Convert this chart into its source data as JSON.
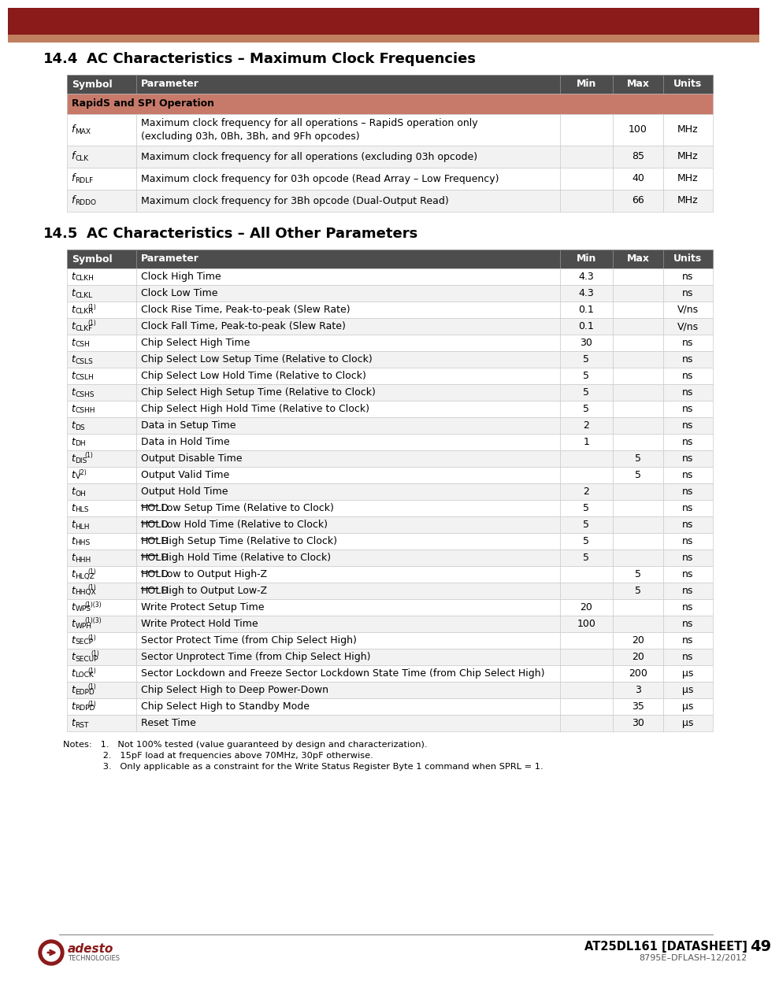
{
  "title1_num": "14.4",
  "title1_text": "AC Characteristics – Maximum Clock Frequencies",
  "title2_num": "14.5",
  "title2_text": "AC Characteristics – All Other Parameters",
  "header_bg": "#4d4d4d",
  "subheader_bg": "#c87a6a",
  "top_bar_dark": "#8b1a1a",
  "top_bar_light": "#c08070",
  "table1_headers": [
    "Symbol",
    "Parameter",
    "Min",
    "Max",
    "Units"
  ],
  "table1_subheader": "RapidS and SPI Operation",
  "table1_rows": [
    [
      "f",
      "MAX",
      "",
      "Maximum clock frequency for all operations – RapidS operation only\n(excluding 03h, 0Bh, 3Bh, and 9Fh opcodes)",
      "",
      "100",
      "MHz"
    ],
    [
      "f",
      "CLK",
      "",
      "Maximum clock frequency for all operations (excluding 03h opcode)",
      "",
      "85",
      "MHz"
    ],
    [
      "f",
      "RDLF",
      "",
      "Maximum clock frequency for 03h opcode (Read Array – Low Frequency)",
      "",
      "40",
      "MHz"
    ],
    [
      "f",
      "RDDO",
      "",
      "Maximum clock frequency for 3Bh opcode (Dual-Output Read)",
      "",
      "66",
      "MHz"
    ]
  ],
  "table2_rows": [
    [
      "t",
      "CLKH",
      "",
      "Clock High Time",
      "4.3",
      "",
      "ns",
      false
    ],
    [
      "t",
      "CLKL",
      "",
      "Clock Low Time",
      "4.3",
      "",
      "ns",
      false
    ],
    [
      "t",
      "CLKR",
      "(1)",
      "Clock Rise Time, Peak-to-peak (Slew Rate)",
      "0.1",
      "",
      "V/ns",
      false
    ],
    [
      "t",
      "CLKF",
      "(1)",
      "Clock Fall Time, Peak-to-peak (Slew Rate)",
      "0.1",
      "",
      "V/ns",
      false
    ],
    [
      "t",
      "CSH",
      "",
      "Chip Select High Time",
      "30",
      "",
      "ns",
      false
    ],
    [
      "t",
      "CSLS",
      "",
      "Chip Select Low Setup Time (Relative to Clock)",
      "5",
      "",
      "ns",
      false
    ],
    [
      "t",
      "CSLH",
      "",
      "Chip Select Low Hold Time (Relative to Clock)",
      "5",
      "",
      "ns",
      false
    ],
    [
      "t",
      "CSHS",
      "",
      "Chip Select High Setup Time (Relative to Clock)",
      "5",
      "",
      "ns",
      false
    ],
    [
      "t",
      "CSHH",
      "",
      "Chip Select High Hold Time (Relative to Clock)",
      "5",
      "",
      "ns",
      false
    ],
    [
      "t",
      "DS",
      "",
      "Data in Setup Time",
      "2",
      "",
      "ns",
      false
    ],
    [
      "t",
      "DH",
      "",
      "Data in Hold Time",
      "1",
      "",
      "ns",
      false
    ],
    [
      "t",
      "DIS",
      "(1)",
      "Output Disable Time",
      "",
      "5",
      "ns",
      false
    ],
    [
      "t",
      "V",
      "(2)",
      "Output Valid Time",
      "",
      "5",
      "ns",
      false
    ],
    [
      "t",
      "OH",
      "",
      "Output Hold Time",
      "2",
      "",
      "ns",
      false
    ],
    [
      "t",
      "HLS",
      "",
      "HOLD Low Setup Time (Relative to Clock)",
      "5",
      "",
      "ns",
      true
    ],
    [
      "t",
      "HLH",
      "",
      "HOLD Low Hold Time (Relative to Clock)",
      "5",
      "",
      "ns",
      true
    ],
    [
      "t",
      "HHS",
      "",
      "HOLD High Setup Time (Relative to Clock)",
      "5",
      "",
      "ns",
      true
    ],
    [
      "t",
      "HHH",
      "",
      "HOLD High Hold Time (Relative to Clock)",
      "5",
      "",
      "ns",
      true
    ],
    [
      "t",
      "HLQZ",
      "(1)",
      "HOLD Low to Output High-Z",
      "",
      "5",
      "ns",
      true
    ],
    [
      "t",
      "HHQX",
      "(1)",
      "HOLD High to Output Low-Z",
      "",
      "5",
      "ns",
      true
    ],
    [
      "t",
      "WPS",
      "(1)(3)",
      "Write Protect Setup Time",
      "20",
      "",
      "ns",
      false
    ],
    [
      "t",
      "WPH",
      "(1)(3)",
      "Write Protect Hold Time",
      "100",
      "",
      "ns",
      false
    ],
    [
      "t",
      "SECP",
      "(1)",
      "Sector Protect Time (from Chip Select High)",
      "",
      "20",
      "ns",
      false
    ],
    [
      "t",
      "SECUP",
      "(1)",
      "Sector Unprotect Time (from Chip Select High)",
      "",
      "20",
      "ns",
      false
    ],
    [
      "t",
      "LOCK",
      "(1)",
      "Sector Lockdown and Freeze Sector Lockdown State Time (from Chip Select High)",
      "",
      "200",
      "μs",
      false
    ],
    [
      "t",
      "EDPD",
      "(1)",
      "Chip Select High to Deep Power-Down",
      "",
      "3",
      "μs",
      false
    ],
    [
      "t",
      "RDPD",
      "(1)",
      "Chip Select High to Standby Mode",
      "",
      "35",
      "μs",
      false
    ],
    [
      "t",
      "RST",
      "",
      "Reset Time",
      "",
      "30",
      "μs",
      false
    ]
  ],
  "notes_line1": "Notes:   1.   Not 100% tested (value guaranteed by design and characterization).",
  "notes_line2": "              2.   15pF load at frequencies above 70MHz, 30pF otherwise.",
  "notes_line3": "              3.   Only applicable as a constraint for the Write Status Register Byte 1 command when SPRL = 1.",
  "footer_product": "AT25DL161 [DATASHEET]",
  "footer_doc": "8795E–DFLASH–12/2012",
  "footer_page": "49"
}
